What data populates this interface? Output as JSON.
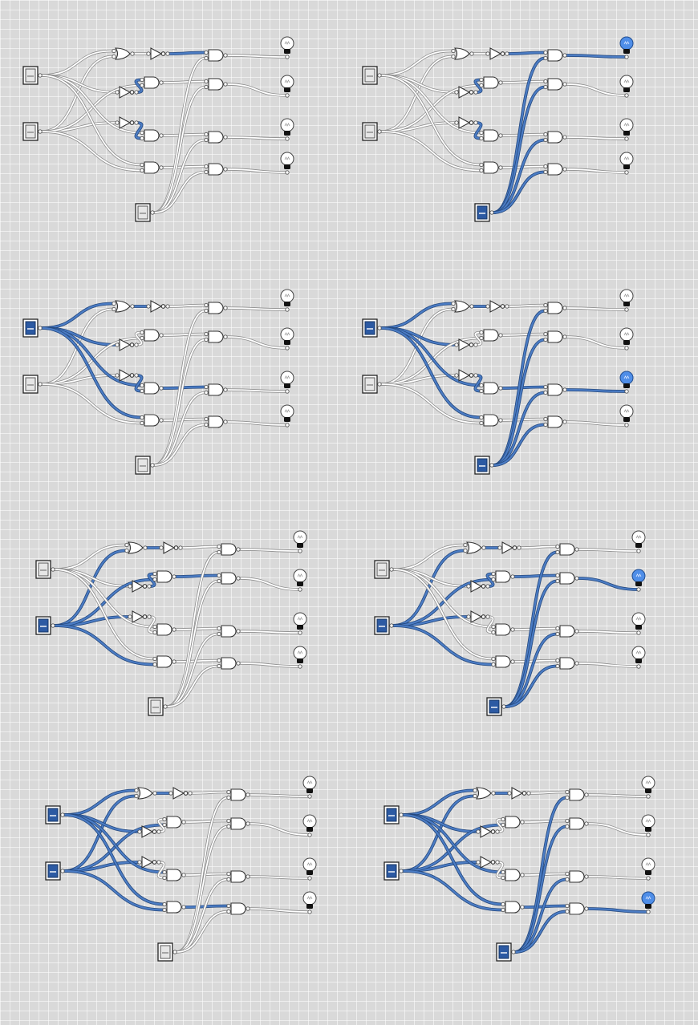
{
  "colors": {
    "background": "#d9d9d9",
    "wire_off_edge": "#8f8f8f",
    "wire_off_core": "#ffffff",
    "wire_on_edge": "#24487e",
    "wire_on_core": "#4b7cc4",
    "lamp_on": "#4f8ee8"
  },
  "circuit_panels": [
    {
      "a": false,
      "b": false,
      "enable": false
    },
    {
      "a": false,
      "b": false,
      "enable": true
    },
    {
      "a": true,
      "b": false,
      "enable": false
    },
    {
      "a": true,
      "b": false,
      "enable": true
    },
    {
      "a": false,
      "b": true,
      "enable": false
    },
    {
      "a": false,
      "b": true,
      "enable": true
    },
    {
      "a": true,
      "b": true,
      "enable": false
    },
    {
      "a": true,
      "b": true,
      "enable": true
    }
  ],
  "icons": {
    "switch": "toggle-switch-icon",
    "lamp": "lightbulb-icon",
    "and_gate": "and-gate-icon",
    "or_gate": "or-gate-icon",
    "not_gate": "not-gate-icon"
  }
}
